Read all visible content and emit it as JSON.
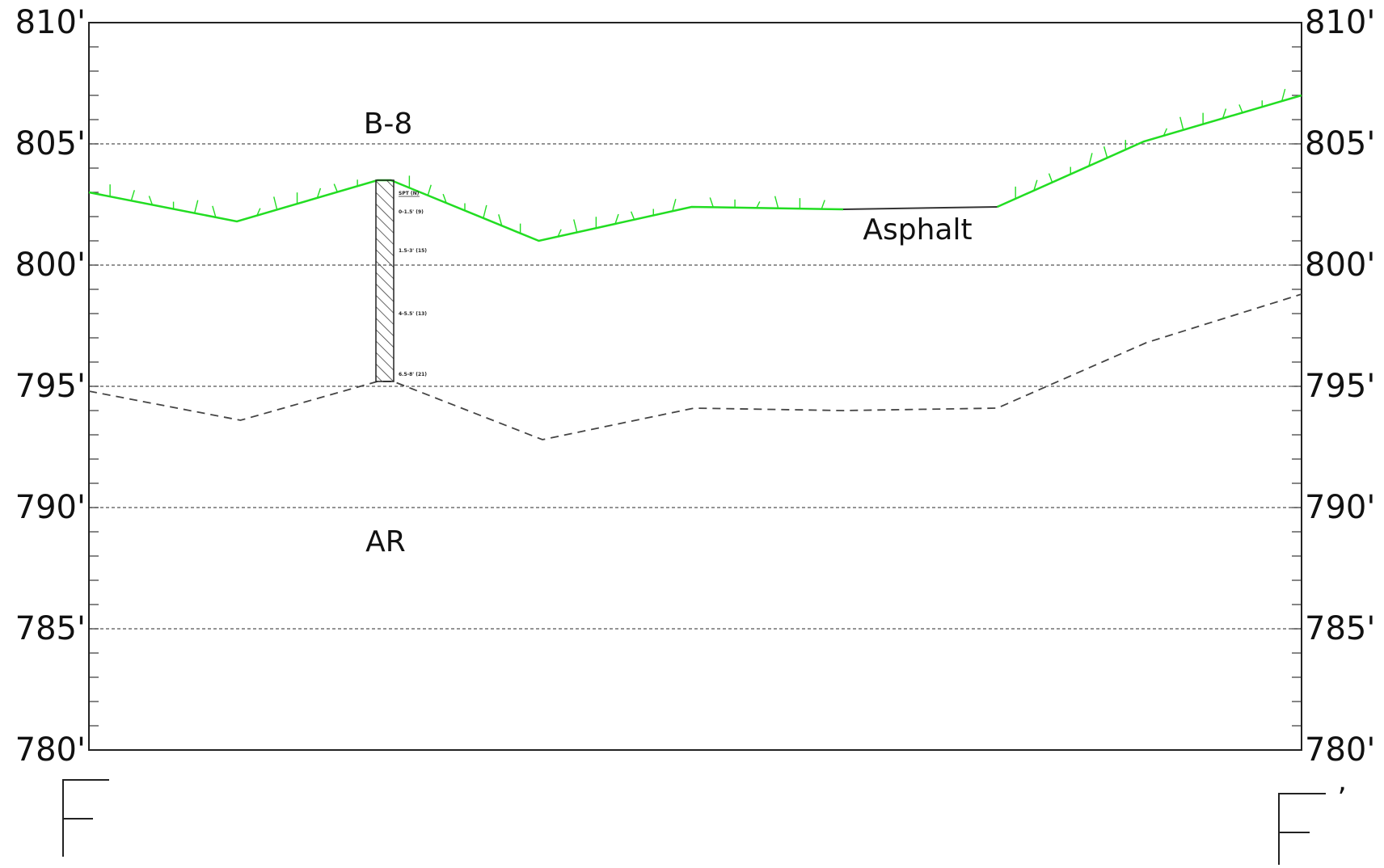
{
  "chart_data": {
    "type": "line",
    "title": "",
    "ylim": [
      780,
      810
    ],
    "y_ticks": [
      "810'",
      "805'",
      "800'",
      "795'",
      "790'",
      "785'",
      "780'"
    ],
    "y_tick_values": [
      810,
      805,
      800,
      795,
      790,
      785,
      780
    ],
    "minor_tick_interval": 1,
    "grid": true,
    "station_range": [
      0,
      1000
    ],
    "series": [
      {
        "key": "ground",
        "color": "#22dd22",
        "points": [
          [
            0,
            803.0
          ],
          [
            122,
            801.8
          ],
          [
            238,
            803.5
          ],
          [
            249,
            803.5
          ],
          [
            371,
            801.0
          ],
          [
            497,
            802.4
          ],
          [
            622,
            802.3
          ],
          [
            749,
            802.4
          ],
          [
            870,
            805.1
          ],
          [
            1000,
            807.0
          ]
        ]
      },
      {
        "key": "auger_refusal",
        "dashed": true,
        "color": "#444444",
        "points": [
          [
            0,
            794.8
          ],
          [
            125,
            793.6
          ],
          [
            238,
            795.2
          ],
          [
            251,
            795.2
          ],
          [
            374,
            792.8
          ],
          [
            499,
            794.1
          ],
          [
            622,
            794.0
          ],
          [
            749,
            794.1
          ],
          [
            872,
            796.8
          ],
          [
            1000,
            798.8
          ]
        ]
      }
    ],
    "asphalt_span": [
      622,
      749
    ],
    "borings": [
      {
        "label": "B-8",
        "station": 244,
        "top": 803.5,
        "bottom": 795.2,
        "header": "SPT (N)",
        "samples": [
          {
            "text": "0-1.5' (9)",
            "elev": 802.2
          },
          {
            "text": "1.5-3' (15)",
            "elev": 800.6
          },
          {
            "text": "4-5.5' (13)",
            "elev": 798.0
          },
          {
            "text": "6.5-8' (21)",
            "elev": 795.5
          }
        ]
      }
    ],
    "annotations": [
      {
        "key": "boring",
        "text": "B-8"
      },
      {
        "key": "surface",
        "text": "Asphalt"
      },
      {
        "key": "refusal",
        "text": "AR"
      }
    ],
    "section": {
      "start": "F",
      "end": "F",
      "end_prime": "’"
    }
  }
}
